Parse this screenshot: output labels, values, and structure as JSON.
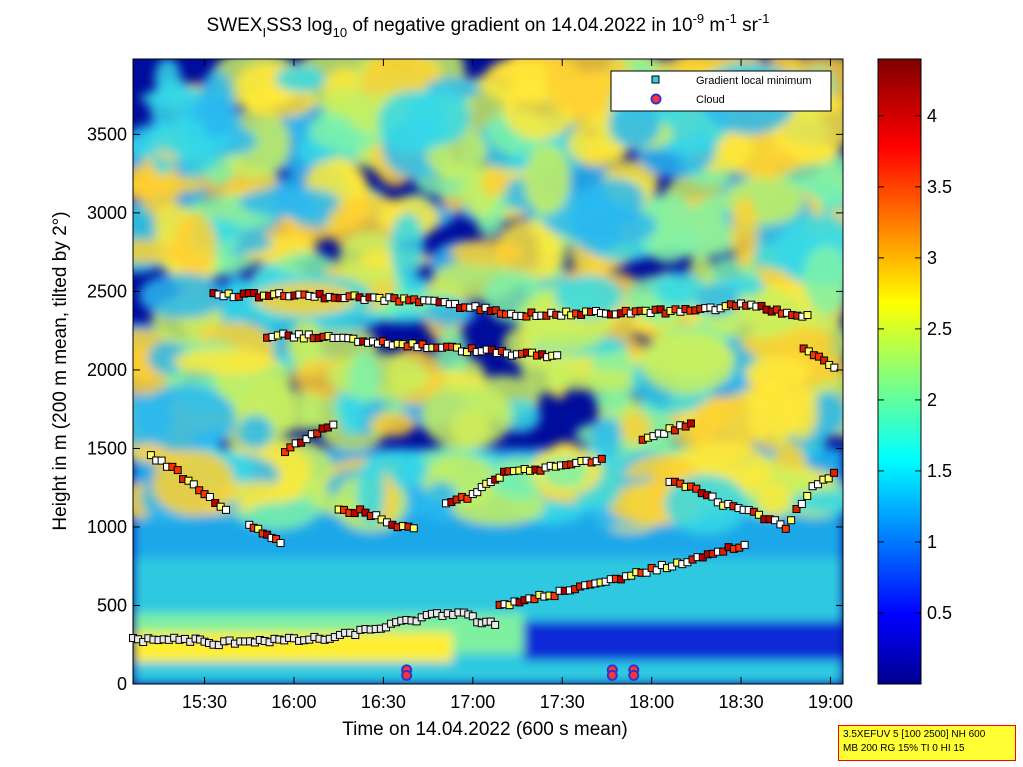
{
  "chart_data": {
    "type": "heatmap",
    "title": {
      "part1": "SWEX",
      "part1_sub": "I",
      "part2": "SS3 log",
      "part2_sub": "10",
      "part3": " of negative gradient on 14.04.2022 in 10",
      "part3_sup": "-9",
      "part4": " m",
      "part4_sup": "-1",
      "part5": " sr",
      "part5_sup": "-1"
    },
    "xlabel": "Time on 14.04.2022 (600 s mean)",
    "ylabel": "Height in m (200 m mean, tilted by 2°)",
    "x_range_hours": [
      15.1,
      19.07
    ],
    "ylim": [
      0,
      3980
    ],
    "x_ticks": [
      {
        "value": 15.5,
        "label": "15:30"
      },
      {
        "value": 16.0,
        "label": "16:00"
      },
      {
        "value": 16.5,
        "label": "16:30"
      },
      {
        "value": 17.0,
        "label": "17:00"
      },
      {
        "value": 17.5,
        "label": "17:30"
      },
      {
        "value": 18.0,
        "label": "18:00"
      },
      {
        "value": 18.5,
        "label": "18:30"
      },
      {
        "value": 19.0,
        "label": "19:00"
      }
    ],
    "y_ticks": [
      0,
      500,
      1000,
      1500,
      2000,
      2500,
      3000,
      3500
    ],
    "colorbar": {
      "range": [
        0,
        4.4
      ],
      "ticks": [
        0.5,
        1,
        1.5,
        2,
        2.5,
        3,
        3.5,
        4
      ],
      "tick_labels": [
        "0.5",
        "1",
        "1.5",
        "2",
        "2.5",
        "3",
        "3.5",
        "4"
      ],
      "colormap": "jet"
    },
    "legend": {
      "placement": "top-right",
      "entries": [
        {
          "label": "Gradient local minimum",
          "marker": "square",
          "color": "#33ccdd"
        },
        {
          "label": "Cloud",
          "marker": "circle",
          "color": "#ff3333",
          "edge": "#3333cc"
        }
      ]
    },
    "minimum_layers": [
      {
        "name": "layer-surface",
        "points": [
          [
            15.1,
            280
          ],
          [
            15.3,
            285
          ],
          [
            15.45,
            280
          ],
          [
            15.55,
            250
          ],
          [
            15.7,
            275
          ],
          [
            16.0,
            280
          ],
          [
            16.2,
            290
          ],
          [
            16.4,
            340
          ],
          [
            16.6,
            390
          ],
          [
            16.8,
            440
          ],
          [
            16.95,
            460
          ],
          [
            17.05,
            380
          ],
          [
            17.15,
            390
          ]
        ]
      },
      {
        "name": "layer-rising",
        "points": [
          [
            17.15,
            500
          ],
          [
            17.4,
            560
          ],
          [
            17.6,
            610
          ],
          [
            17.8,
            670
          ],
          [
            18.0,
            730
          ],
          [
            18.2,
            780
          ],
          [
            18.4,
            850
          ],
          [
            18.55,
            900
          ]
        ]
      },
      {
        "name": "layer-1000a",
        "points": [
          [
            15.2,
            1450
          ],
          [
            15.35,
            1350
          ],
          [
            15.5,
            1200
          ],
          [
            15.65,
            1100
          ]
        ]
      },
      {
        "name": "layer-1000b",
        "points": [
          [
            15.75,
            1000
          ],
          [
            15.85,
            950
          ],
          [
            15.95,
            900
          ]
        ]
      },
      {
        "name": "layer-1000c",
        "points": [
          [
            16.25,
            1100
          ],
          [
            16.4,
            1100
          ],
          [
            16.55,
            1000
          ],
          [
            16.7,
            980
          ]
        ]
      },
      {
        "name": "layer-1150",
        "points": [
          [
            16.85,
            1150
          ],
          [
            17.0,
            1200
          ],
          [
            17.1,
            1300
          ],
          [
            17.2,
            1350
          ],
          [
            17.35,
            1360
          ],
          [
            17.55,
            1400
          ],
          [
            17.75,
            1440
          ]
        ]
      },
      {
        "name": "layer-1300",
        "points": [
          [
            18.1,
            1300
          ],
          [
            18.25,
            1250
          ],
          [
            18.4,
            1150
          ],
          [
            18.6,
            1080
          ],
          [
            18.75,
            1000
          ],
          [
            18.9,
            1250
          ],
          [
            19.05,
            1350
          ]
        ]
      },
      {
        "name": "layer-1500",
        "points": [
          [
            15.95,
            1480
          ],
          [
            16.1,
            1580
          ],
          [
            16.25,
            1660
          ]
        ]
      },
      {
        "name": "layer-1600",
        "points": [
          [
            17.95,
            1550
          ],
          [
            18.1,
            1620
          ],
          [
            18.25,
            1660
          ]
        ]
      },
      {
        "name": "layer-2000",
        "points": [
          [
            18.85,
            2150
          ],
          [
            19.05,
            2000
          ]
        ]
      },
      {
        "name": "layer-2400",
        "points": [
          [
            15.55,
            2480
          ],
          [
            16.2,
            2470
          ],
          [
            16.7,
            2440
          ],
          [
            17.3,
            2350
          ],
          [
            18.3,
            2380
          ],
          [
            18.5,
            2420
          ],
          [
            18.9,
            2330
          ]
        ]
      },
      {
        "name": "layer-2200",
        "points": [
          [
            15.85,
            2220
          ],
          [
            16.0,
            2220
          ],
          [
            17.05,
            2120
          ],
          [
            17.5,
            2080
          ]
        ]
      }
    ],
    "clouds": [
      {
        "x": 16.63,
        "y": 90
      },
      {
        "x": 16.63,
        "y": 55
      },
      {
        "x": 17.78,
        "y": 90
      },
      {
        "x": 17.78,
        "y": 55
      },
      {
        "x": 17.9,
        "y": 90
      },
      {
        "x": 17.9,
        "y": 55
      }
    ],
    "params_box": {
      "line1": "3.5XEFUV 5 [100 2500] NH 600",
      "line2": "MB 200 RG 15% TI 0 HI 15"
    }
  }
}
